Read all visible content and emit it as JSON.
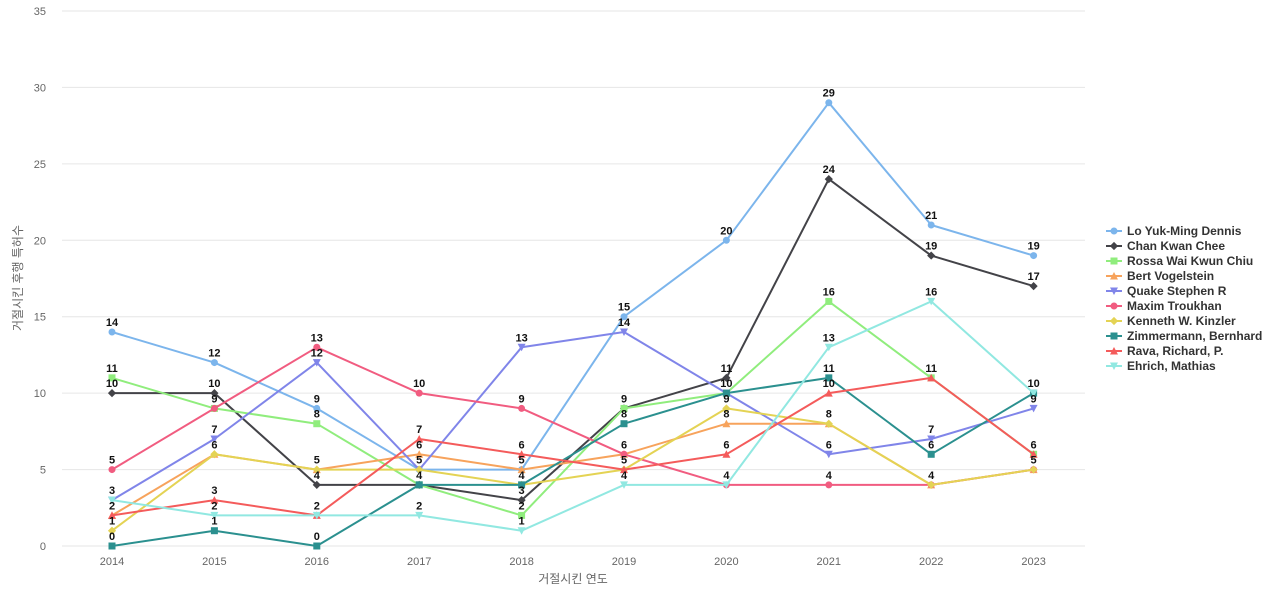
{
  "chart_data": {
    "type": "line",
    "title": "",
    "xlabel": "거절시킨 연도",
    "ylabel": "거절시킨 후행 특허수",
    "ylim": [
      0,
      35
    ],
    "y_ticks": [
      0,
      5,
      10,
      15,
      20,
      25,
      30,
      35
    ],
    "grid": true,
    "legend_position": "right",
    "categories": [
      "2014",
      "2015",
      "2016",
      "2017",
      "2018",
      "2019",
      "2020",
      "2021",
      "2022",
      "2023"
    ],
    "series": [
      {
        "name": "Lo Yuk-Ming Dennis",
        "color": "#7cb5ec",
        "marker": "circle",
        "values": [
          14,
          12,
          9,
          5,
          5,
          15,
          20,
          29,
          21,
          19
        ]
      },
      {
        "name": "Chan Kwan Chee",
        "color": "#434348",
        "marker": "diamond",
        "values": [
          10,
          10,
          4,
          4,
          3,
          9,
          11,
          24,
          19,
          17
        ]
      },
      {
        "name": "Rossa Wai Kwun Chiu",
        "color": "#90ed7d",
        "marker": "square",
        "values": [
          11,
          9,
          8,
          4,
          2,
          9,
          10,
          16,
          11,
          6
        ]
      },
      {
        "name": "Bert Vogelstein",
        "color": "#f7a35c",
        "marker": "triangle",
        "values": [
          2,
          6,
          5,
          6,
          5,
          6,
          8,
          8,
          4,
          5
        ]
      },
      {
        "name": "Quake Stephen R",
        "color": "#8085e9",
        "marker": "triangle-down",
        "values": [
          3,
          7,
          12,
          5,
          13,
          14,
          10,
          6,
          7,
          9
        ]
      },
      {
        "name": "Maxim Troukhan",
        "color": "#f15c80",
        "marker": "circle",
        "values": [
          5,
          9,
          13,
          10,
          9,
          6,
          4,
          4,
          4,
          5
        ]
      },
      {
        "name": "Kenneth W. Kinzler",
        "color": "#e4d354",
        "marker": "diamond",
        "values": [
          1,
          6,
          5,
          5,
          4,
          5,
          9,
          8,
          4,
          5
        ]
      },
      {
        "name": "Zimmermann, Bernhard",
        "color": "#2b908f",
        "marker": "square",
        "values": [
          0,
          1,
          0,
          4,
          4,
          8,
          10,
          11,
          6,
          10
        ]
      },
      {
        "name": "Rava, Richard, P.",
        "color": "#f45b5b",
        "marker": "triangle",
        "values": [
          2,
          3,
          2,
          7,
          6,
          5,
          6,
          10,
          11,
          6
        ]
      },
      {
        "name": "Ehrich, Mathias",
        "color": "#91e8e1",
        "marker": "triangle-down",
        "values": [
          3,
          2,
          2,
          2,
          1,
          4,
          4,
          13,
          16,
          10
        ]
      }
    ],
    "data_labels": [
      {
        "x": "2014",
        "labels": [
          14,
          11,
          10,
          5,
          3,
          2,
          1,
          0
        ]
      },
      {
        "x": "2015",
        "labels": [
          12,
          10,
          9,
          7,
          6,
          3,
          2,
          1
        ]
      },
      {
        "x": "2016",
        "labels": [
          13,
          12,
          9,
          8,
          5,
          4,
          2,
          0
        ]
      },
      {
        "x": "2017",
        "labels": [
          10,
          7,
          6,
          5,
          4,
          2
        ]
      },
      {
        "x": "2018",
        "labels": [
          13,
          9,
          6,
          5,
          4,
          3,
          2,
          1
        ]
      },
      {
        "x": "2019",
        "labels": [
          15,
          14,
          9,
          8,
          6,
          5,
          4
        ]
      },
      {
        "x": "2020",
        "labels": [
          20,
          11,
          10,
          9,
          8,
          6,
          4
        ]
      },
      {
        "x": "2021",
        "labels": [
          29,
          24,
          16,
          13,
          11,
          10,
          8,
          6,
          4
        ]
      },
      {
        "x": "2022",
        "labels": [
          21,
          19,
          16,
          11,
          7,
          6,
          4
        ]
      },
      {
        "x": "2023",
        "labels": [
          19,
          17,
          10,
          9,
          6,
          5
        ]
      }
    ]
  }
}
